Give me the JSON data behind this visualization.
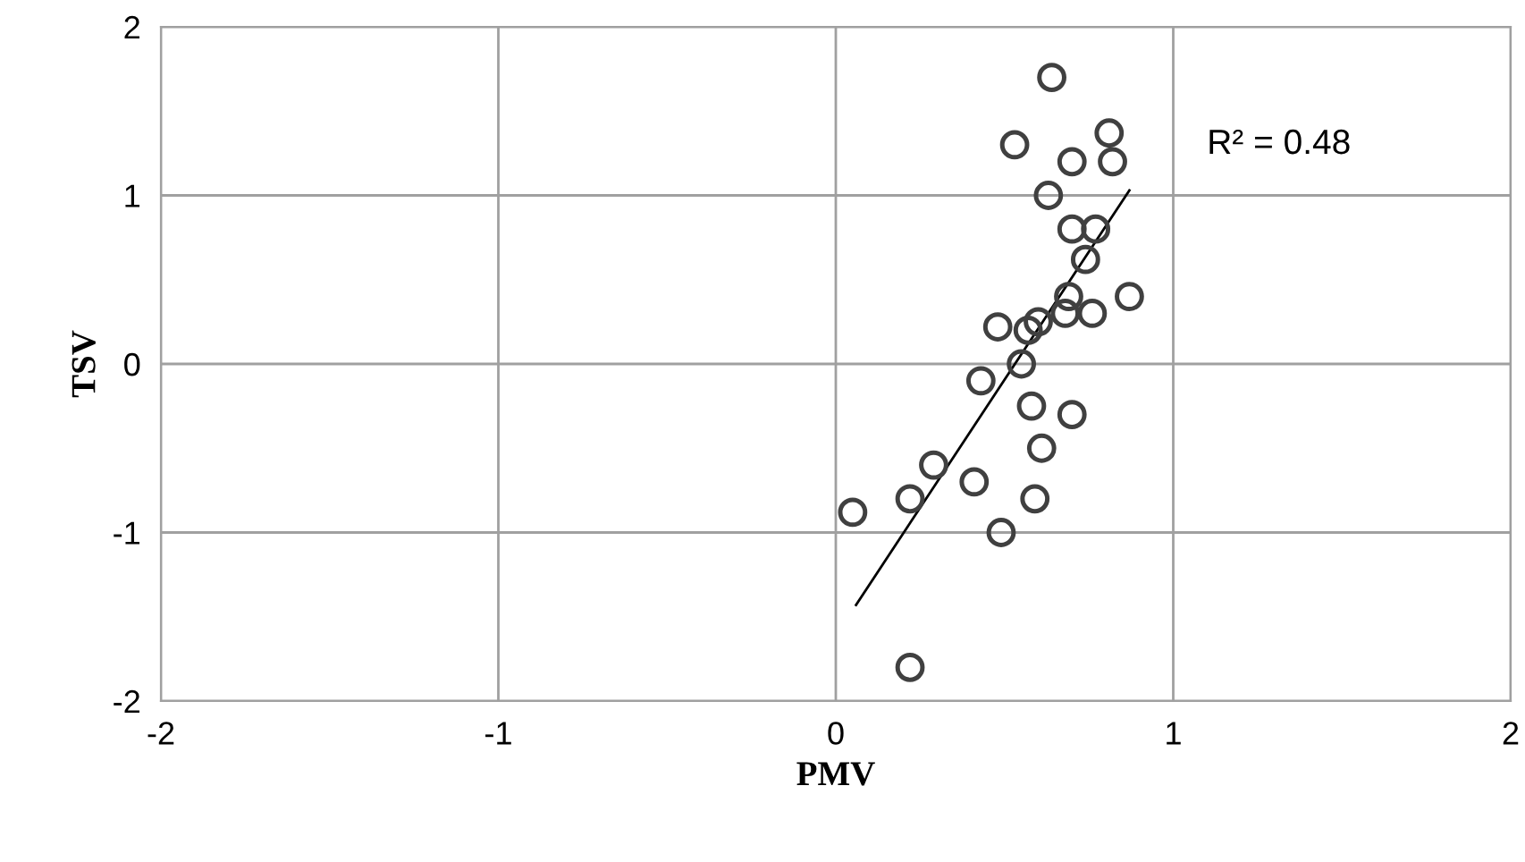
{
  "chart_data": {
    "type": "scatter",
    "xlabel": "PMV",
    "ylabel": "TSV",
    "xlim": [
      -2,
      2
    ],
    "ylim": [
      -2,
      2
    ],
    "xticks": [
      -2,
      -1,
      0,
      1,
      2
    ],
    "yticks": [
      -2,
      -1,
      0,
      1,
      2
    ],
    "grid": true,
    "annotations": [
      "R² = 0.48"
    ],
    "series": [
      {
        "marker": "circle",
        "color": "#404040",
        "x": [
          0.64,
          0.53,
          0.81,
          0.7,
          0.82,
          0.63,
          0.7,
          0.77,
          0.74,
          0.69,
          0.87,
          0.68,
          0.76,
          0.6,
          0.57,
          0.48,
          0.55,
          0.43,
          0.58,
          0.7,
          0.29,
          0.61,
          0.41,
          0.22,
          0.59,
          0.05,
          0.49,
          0.22
        ],
        "values": [
          1.7,
          1.3,
          1.37,
          1.2,
          1.2,
          1.0,
          0.8,
          0.8,
          0.62,
          0.4,
          0.4,
          0.3,
          0.3,
          0.25,
          0.2,
          0.22,
          0.0,
          -0.1,
          -0.25,
          -0.3,
          -0.6,
          -0.5,
          -0.7,
          -0.8,
          -0.8,
          -0.88,
          -1.0,
          -1.8
        ]
      },
      {
        "type": "line",
        "color": "#000000",
        "x": [
          0.06,
          0.87
        ],
        "values": [
          -1.43,
          1.03
        ]
      }
    ]
  }
}
